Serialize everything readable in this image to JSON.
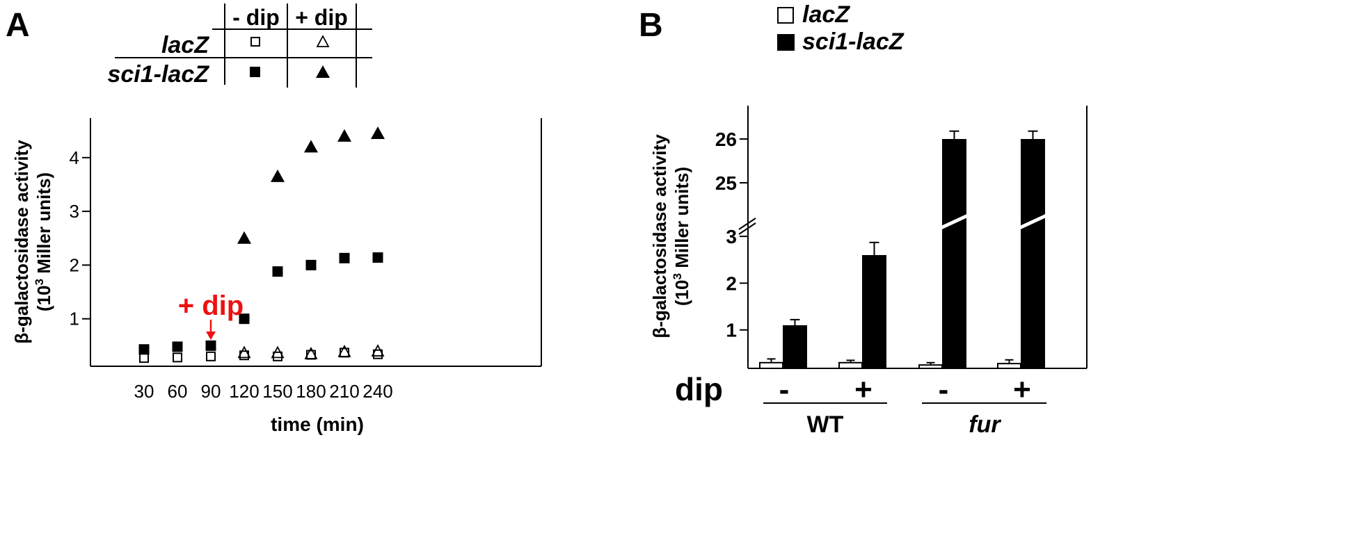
{
  "colors": {
    "annotation": "#ee1111",
    "ink": "#000000",
    "open_fill": "#ffffff"
  },
  "chart_data": [
    {
      "panel": "A",
      "type": "scatter",
      "xlabel": "time (min)",
      "ylabel_line1": "β-galactosidase activity",
      "ylabel_line2_main": "(10",
      "ylabel_line2_sup": "3",
      "ylabel_line2_end": " Miller units)",
      "x_ticks": [
        30,
        60,
        90,
        120,
        150,
        180,
        210,
        240
      ],
      "y_ticks": [
        1,
        2,
        3,
        4
      ],
      "xlim": [
        0,
        270
      ],
      "ylim": [
        0,
        4.6
      ],
      "legend_table": {
        "col_headers": [
          "- dip",
          "+ dip"
        ],
        "row_labels": [
          "lacZ",
          "sci1-lacZ"
        ]
      },
      "annotation": {
        "text": "+ dip",
        "x": 90
      },
      "series": [
        {
          "name": "lacZ - dip",
          "marker": "open-square",
          "x": [
            30,
            60,
            90,
            120,
            150,
            180,
            210,
            240
          ],
          "y": [
            0.27,
            0.28,
            0.3,
            0.32,
            0.3,
            0.33,
            0.37,
            0.34
          ]
        },
        {
          "name": "lacZ + dip",
          "marker": "open-triangle",
          "x": [
            120,
            150,
            180,
            210,
            240
          ],
          "y": [
            0.37,
            0.37,
            0.35,
            0.39,
            0.4
          ]
        },
        {
          "name": "sci1-lacZ - dip",
          "marker": "filled-square",
          "x": [
            30,
            60,
            90,
            120,
            150,
            180,
            210,
            240
          ],
          "y": [
            0.43,
            0.48,
            0.5,
            1.0,
            1.88,
            2.0,
            2.13,
            2.14
          ]
        },
        {
          "name": "sci1-lacZ + dip",
          "marker": "filled-triangle",
          "x": [
            120,
            150,
            180,
            210,
            240
          ],
          "y": [
            2.5,
            3.65,
            4.2,
            4.4,
            4.45
          ]
        }
      ]
    },
    {
      "panel": "B",
      "type": "bar",
      "ylabel_line1": "β-galactosidase activity",
      "ylabel_line2_main": "(10",
      "ylabel_line2_sup": "3",
      "ylabel_line2_end": " Miller units)",
      "y_ticks_lower": [
        1,
        2,
        3
      ],
      "y_ticks_upper": [
        25,
        26
      ],
      "axis_break": "between 3 and 25",
      "legend": [
        "lacZ",
        "sci1-lacZ"
      ],
      "row_label": "dip",
      "groups": [
        {
          "name": "WT",
          "conditions": [
            "-",
            "+"
          ]
        },
        {
          "name": "fur",
          "conditions": [
            "-",
            "+"
          ]
        }
      ],
      "categories": [
        "WT -",
        "WT +",
        "fur -",
        "fur +"
      ],
      "series": [
        {
          "name": "lacZ",
          "values": [
            0.3,
            0.3,
            0.25,
            0.28
          ],
          "errors": [
            0.08,
            0.05,
            0.05,
            0.08
          ]
        },
        {
          "name": "sci1-lacZ",
          "values": [
            1.1,
            2.6,
            26.0,
            26.0
          ],
          "errors": [
            0.12,
            0.27,
            0.18,
            0.18
          ]
        }
      ]
    }
  ]
}
